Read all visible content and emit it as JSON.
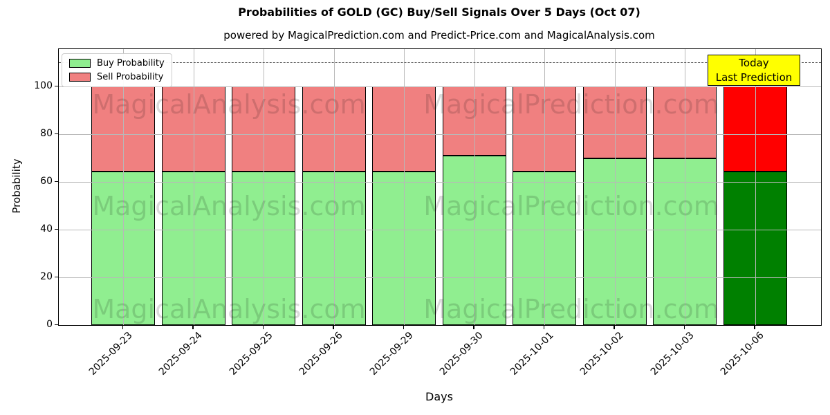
{
  "chart_data": {
    "type": "bar",
    "stacked": true,
    "title": "Probabilities of GOLD (GC) Buy/Sell Signals Over 5 Days (Oct 07)",
    "subtitle": "powered by MagicalPrediction.com and Predict-Price.com and MagicalAnalysis.com",
    "xlabel": "Days",
    "ylabel": "Probability",
    "categories": [
      "2025-09-23",
      "2025-09-24",
      "2025-09-25",
      "2025-09-26",
      "2025-09-29",
      "2025-09-30",
      "2025-10-01",
      "2025-10-02",
      "2025-10-03",
      "2025-10-06"
    ],
    "series": [
      {
        "name": "Buy Probability",
        "color": "#90EE90",
        "today_color": "#008000",
        "values": [
          64.5,
          64.5,
          64.5,
          64.5,
          64.5,
          71,
          64.5,
          70,
          70,
          64.5
        ]
      },
      {
        "name": "Sell Probability",
        "color": "#F08080",
        "today_color": "#FF0000",
        "values": [
          35.5,
          35.5,
          35.5,
          35.5,
          35.5,
          29,
          35.5,
          30,
          30,
          35.5
        ]
      }
    ],
    "yticks": [
      0,
      20,
      40,
      60,
      80,
      100
    ],
    "ylim": [
      0,
      115.7
    ],
    "dashed_line_y": 110,
    "grid": true,
    "legend_position": "upper left",
    "today_index": 9,
    "bar_edge_color": "#000000"
  },
  "annotation_box": {
    "line1": "Today",
    "line2": "Last Prediction",
    "bg_color": "#FFFF00"
  },
  "watermarks": {
    "left_text": "MagicalAnalysis.com",
    "right_text": "MagicalPrediction.com"
  },
  "colors": {
    "grid": "#b8b8b8",
    "dashed_line": "#555555",
    "axis": "#000000",
    "background": "#ffffff"
  }
}
